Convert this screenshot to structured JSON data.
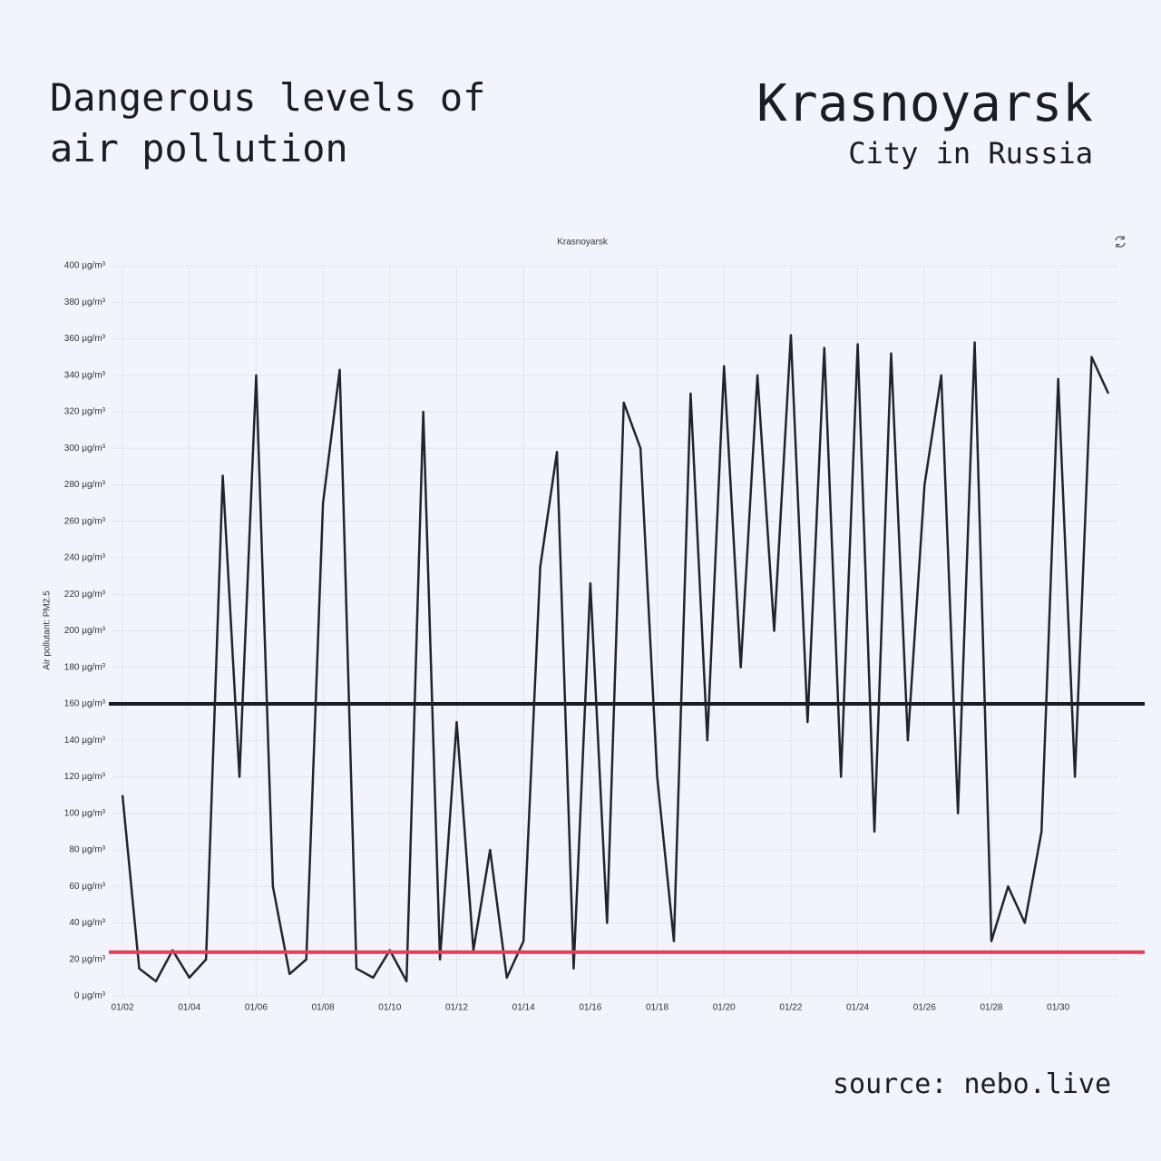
{
  "header": {
    "title": "Dangerous levels of air pollution",
    "city": "Krasnoyarsk",
    "subtitle": "City in Russia"
  },
  "source": "source: nebo.live",
  "chart_data": {
    "type": "line",
    "title": "Krasnoyarsk",
    "y_label": "Air pollutant: PM2.5",
    "x": [
      2,
      2.5,
      3,
      3.5,
      4,
      4.5,
      5,
      5.5,
      6,
      6.5,
      7,
      7.5,
      8,
      8.5,
      9,
      9.5,
      10,
      10.5,
      11,
      11.5,
      12,
      12.5,
      13,
      13.5,
      14,
      14.5,
      15,
      15.5,
      16,
      16.5,
      17,
      17.5,
      18,
      18.5,
      19,
      19.5,
      20,
      20.5,
      21,
      21.5,
      22,
      22.5,
      23,
      23.5,
      24,
      24.5,
      25,
      25.5,
      26,
      26.5,
      27,
      27.5,
      28,
      28.5,
      29,
      29.5,
      30,
      30.5,
      31,
      31.5
    ],
    "series": [
      {
        "color": "#22242c",
        "values": [
          110,
          15,
          8,
          25,
          10,
          20,
          285,
          120,
          340,
          60,
          12,
          20,
          270,
          343,
          15,
          10,
          25,
          8,
          320,
          20,
          150,
          25,
          80,
          10,
          30,
          235,
          298,
          15,
          226,
          40,
          325,
          300,
          120,
          30,
          330,
          140,
          345,
          180,
          340,
          200,
          362,
          150,
          355,
          120,
          357,
          90,
          352,
          140,
          280,
          340,
          100,
          358,
          30,
          60,
          40,
          90,
          338,
          120,
          350,
          330
        ]
      }
    ],
    "reference_lines": [
      {
        "value": 160,
        "color": "#1c1d24"
      },
      {
        "value": 24,
        "color": "#e0405a"
      }
    ],
    "xlim": [
      1.7,
      31.8
    ],
    "xticks": [
      {
        "value": 2,
        "label": "01/02"
      },
      {
        "value": 4,
        "label": "01/04"
      },
      {
        "value": 6,
        "label": "01/06"
      },
      {
        "value": 8,
        "label": "01/08"
      },
      {
        "value": 10,
        "label": "01/10"
      },
      {
        "value": 12,
        "label": "01/12"
      },
      {
        "value": 14,
        "label": "01/14"
      },
      {
        "value": 16,
        "label": "01/16"
      },
      {
        "value": 18,
        "label": "01/18"
      },
      {
        "value": 20,
        "label": "01/20"
      },
      {
        "value": 22,
        "label": "01/22"
      },
      {
        "value": 24,
        "label": "01/24"
      },
      {
        "value": 26,
        "label": "01/26"
      },
      {
        "value": 28,
        "label": "01/28"
      },
      {
        "value": 30,
        "label": "01/30"
      }
    ],
    "ylim": [
      0,
      400
    ],
    "yticks": [
      {
        "value": 0,
        "label": "0 µg/m³"
      },
      {
        "value": 20,
        "label": "20 µg/m³"
      },
      {
        "value": 40,
        "label": "40 µg/m³"
      },
      {
        "value": 60,
        "label": "60 µg/m³"
      },
      {
        "value": 80,
        "label": "80 µg/m³"
      },
      {
        "value": 100,
        "label": "100 µg/m³"
      },
      {
        "value": 120,
        "label": "120 µg/m³"
      },
      {
        "value": 140,
        "label": "140 µg/m³"
      },
      {
        "value": 160,
        "label": "160 µg/m³"
      },
      {
        "value": 180,
        "label": "180 µg/m³"
      },
      {
        "value": 200,
        "label": "200 µg/m³"
      },
      {
        "value": 220,
        "label": "220 µg/m³"
      },
      {
        "value": 240,
        "label": "240 µg/m³"
      },
      {
        "value": 260,
        "label": "260 µg/m³"
      },
      {
        "value": 280,
        "label": "280 µg/m³"
      },
      {
        "value": 300,
        "label": "300 µg/m³"
      },
      {
        "value": 320,
        "label": "320 µg/m³"
      },
      {
        "value": 340,
        "label": "340 µg/m³"
      },
      {
        "value": 360,
        "label": "360 µg/m³"
      },
      {
        "value": 380,
        "label": "380 µg/m³"
      },
      {
        "value": 400,
        "label": "400 µg/m³"
      }
    ],
    "grid": true
  }
}
